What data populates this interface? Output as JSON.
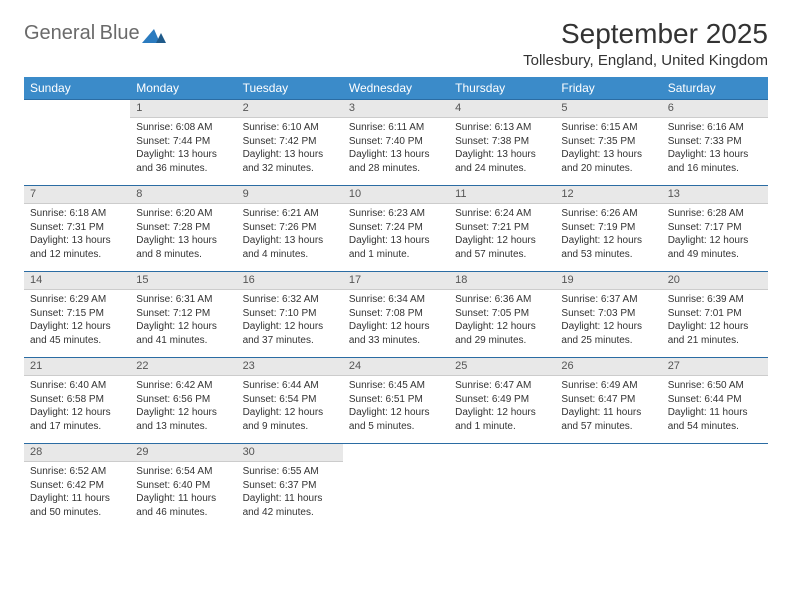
{
  "brand": {
    "word1": "General",
    "word2": "Blue",
    "icon_color": "#2b7bbf",
    "text_color_gray": "#6a6a6a"
  },
  "title": "September 2025",
  "location": "Tollesbury, England, United Kingdom",
  "colors": {
    "header_bg": "#3b8bc9",
    "header_text": "#ffffff",
    "daynum_bg": "#e8e8e8",
    "row_divider": "#2b6ca3",
    "body_text": "#333333"
  },
  "weekdays": [
    "Sunday",
    "Monday",
    "Tuesday",
    "Wednesday",
    "Thursday",
    "Friday",
    "Saturday"
  ],
  "weeks": [
    {
      "nums": [
        "",
        "1",
        "2",
        "3",
        "4",
        "5",
        "6"
      ],
      "cells": [
        null,
        {
          "sunrise": "Sunrise: 6:08 AM",
          "sunset": "Sunset: 7:44 PM",
          "day": "Daylight: 13 hours and 36 minutes."
        },
        {
          "sunrise": "Sunrise: 6:10 AM",
          "sunset": "Sunset: 7:42 PM",
          "day": "Daylight: 13 hours and 32 minutes."
        },
        {
          "sunrise": "Sunrise: 6:11 AM",
          "sunset": "Sunset: 7:40 PM",
          "day": "Daylight: 13 hours and 28 minutes."
        },
        {
          "sunrise": "Sunrise: 6:13 AM",
          "sunset": "Sunset: 7:38 PM",
          "day": "Daylight: 13 hours and 24 minutes."
        },
        {
          "sunrise": "Sunrise: 6:15 AM",
          "sunset": "Sunset: 7:35 PM",
          "day": "Daylight: 13 hours and 20 minutes."
        },
        {
          "sunrise": "Sunrise: 6:16 AM",
          "sunset": "Sunset: 7:33 PM",
          "day": "Daylight: 13 hours and 16 minutes."
        }
      ]
    },
    {
      "nums": [
        "7",
        "8",
        "9",
        "10",
        "11",
        "12",
        "13"
      ],
      "cells": [
        {
          "sunrise": "Sunrise: 6:18 AM",
          "sunset": "Sunset: 7:31 PM",
          "day": "Daylight: 13 hours and 12 minutes."
        },
        {
          "sunrise": "Sunrise: 6:20 AM",
          "sunset": "Sunset: 7:28 PM",
          "day": "Daylight: 13 hours and 8 minutes."
        },
        {
          "sunrise": "Sunrise: 6:21 AM",
          "sunset": "Sunset: 7:26 PM",
          "day": "Daylight: 13 hours and 4 minutes."
        },
        {
          "sunrise": "Sunrise: 6:23 AM",
          "sunset": "Sunset: 7:24 PM",
          "day": "Daylight: 13 hours and 1 minute."
        },
        {
          "sunrise": "Sunrise: 6:24 AM",
          "sunset": "Sunset: 7:21 PM",
          "day": "Daylight: 12 hours and 57 minutes."
        },
        {
          "sunrise": "Sunrise: 6:26 AM",
          "sunset": "Sunset: 7:19 PM",
          "day": "Daylight: 12 hours and 53 minutes."
        },
        {
          "sunrise": "Sunrise: 6:28 AM",
          "sunset": "Sunset: 7:17 PM",
          "day": "Daylight: 12 hours and 49 minutes."
        }
      ]
    },
    {
      "nums": [
        "14",
        "15",
        "16",
        "17",
        "18",
        "19",
        "20"
      ],
      "cells": [
        {
          "sunrise": "Sunrise: 6:29 AM",
          "sunset": "Sunset: 7:15 PM",
          "day": "Daylight: 12 hours and 45 minutes."
        },
        {
          "sunrise": "Sunrise: 6:31 AM",
          "sunset": "Sunset: 7:12 PM",
          "day": "Daylight: 12 hours and 41 minutes."
        },
        {
          "sunrise": "Sunrise: 6:32 AM",
          "sunset": "Sunset: 7:10 PM",
          "day": "Daylight: 12 hours and 37 minutes."
        },
        {
          "sunrise": "Sunrise: 6:34 AM",
          "sunset": "Sunset: 7:08 PM",
          "day": "Daylight: 12 hours and 33 minutes."
        },
        {
          "sunrise": "Sunrise: 6:36 AM",
          "sunset": "Sunset: 7:05 PM",
          "day": "Daylight: 12 hours and 29 minutes."
        },
        {
          "sunrise": "Sunrise: 6:37 AM",
          "sunset": "Sunset: 7:03 PM",
          "day": "Daylight: 12 hours and 25 minutes."
        },
        {
          "sunrise": "Sunrise: 6:39 AM",
          "sunset": "Sunset: 7:01 PM",
          "day": "Daylight: 12 hours and 21 minutes."
        }
      ]
    },
    {
      "nums": [
        "21",
        "22",
        "23",
        "24",
        "25",
        "26",
        "27"
      ],
      "cells": [
        {
          "sunrise": "Sunrise: 6:40 AM",
          "sunset": "Sunset: 6:58 PM",
          "day": "Daylight: 12 hours and 17 minutes."
        },
        {
          "sunrise": "Sunrise: 6:42 AM",
          "sunset": "Sunset: 6:56 PM",
          "day": "Daylight: 12 hours and 13 minutes."
        },
        {
          "sunrise": "Sunrise: 6:44 AM",
          "sunset": "Sunset: 6:54 PM",
          "day": "Daylight: 12 hours and 9 minutes."
        },
        {
          "sunrise": "Sunrise: 6:45 AM",
          "sunset": "Sunset: 6:51 PM",
          "day": "Daylight: 12 hours and 5 minutes."
        },
        {
          "sunrise": "Sunrise: 6:47 AM",
          "sunset": "Sunset: 6:49 PM",
          "day": "Daylight: 12 hours and 1 minute."
        },
        {
          "sunrise": "Sunrise: 6:49 AM",
          "sunset": "Sunset: 6:47 PM",
          "day": "Daylight: 11 hours and 57 minutes."
        },
        {
          "sunrise": "Sunrise: 6:50 AM",
          "sunset": "Sunset: 6:44 PM",
          "day": "Daylight: 11 hours and 54 minutes."
        }
      ]
    },
    {
      "nums": [
        "28",
        "29",
        "30",
        "",
        "",
        "",
        ""
      ],
      "cells": [
        {
          "sunrise": "Sunrise: 6:52 AM",
          "sunset": "Sunset: 6:42 PM",
          "day": "Daylight: 11 hours and 50 minutes."
        },
        {
          "sunrise": "Sunrise: 6:54 AM",
          "sunset": "Sunset: 6:40 PM",
          "day": "Daylight: 11 hours and 46 minutes."
        },
        {
          "sunrise": "Sunrise: 6:55 AM",
          "sunset": "Sunset: 6:37 PM",
          "day": "Daylight: 11 hours and 42 minutes."
        },
        null,
        null,
        null,
        null
      ]
    }
  ]
}
